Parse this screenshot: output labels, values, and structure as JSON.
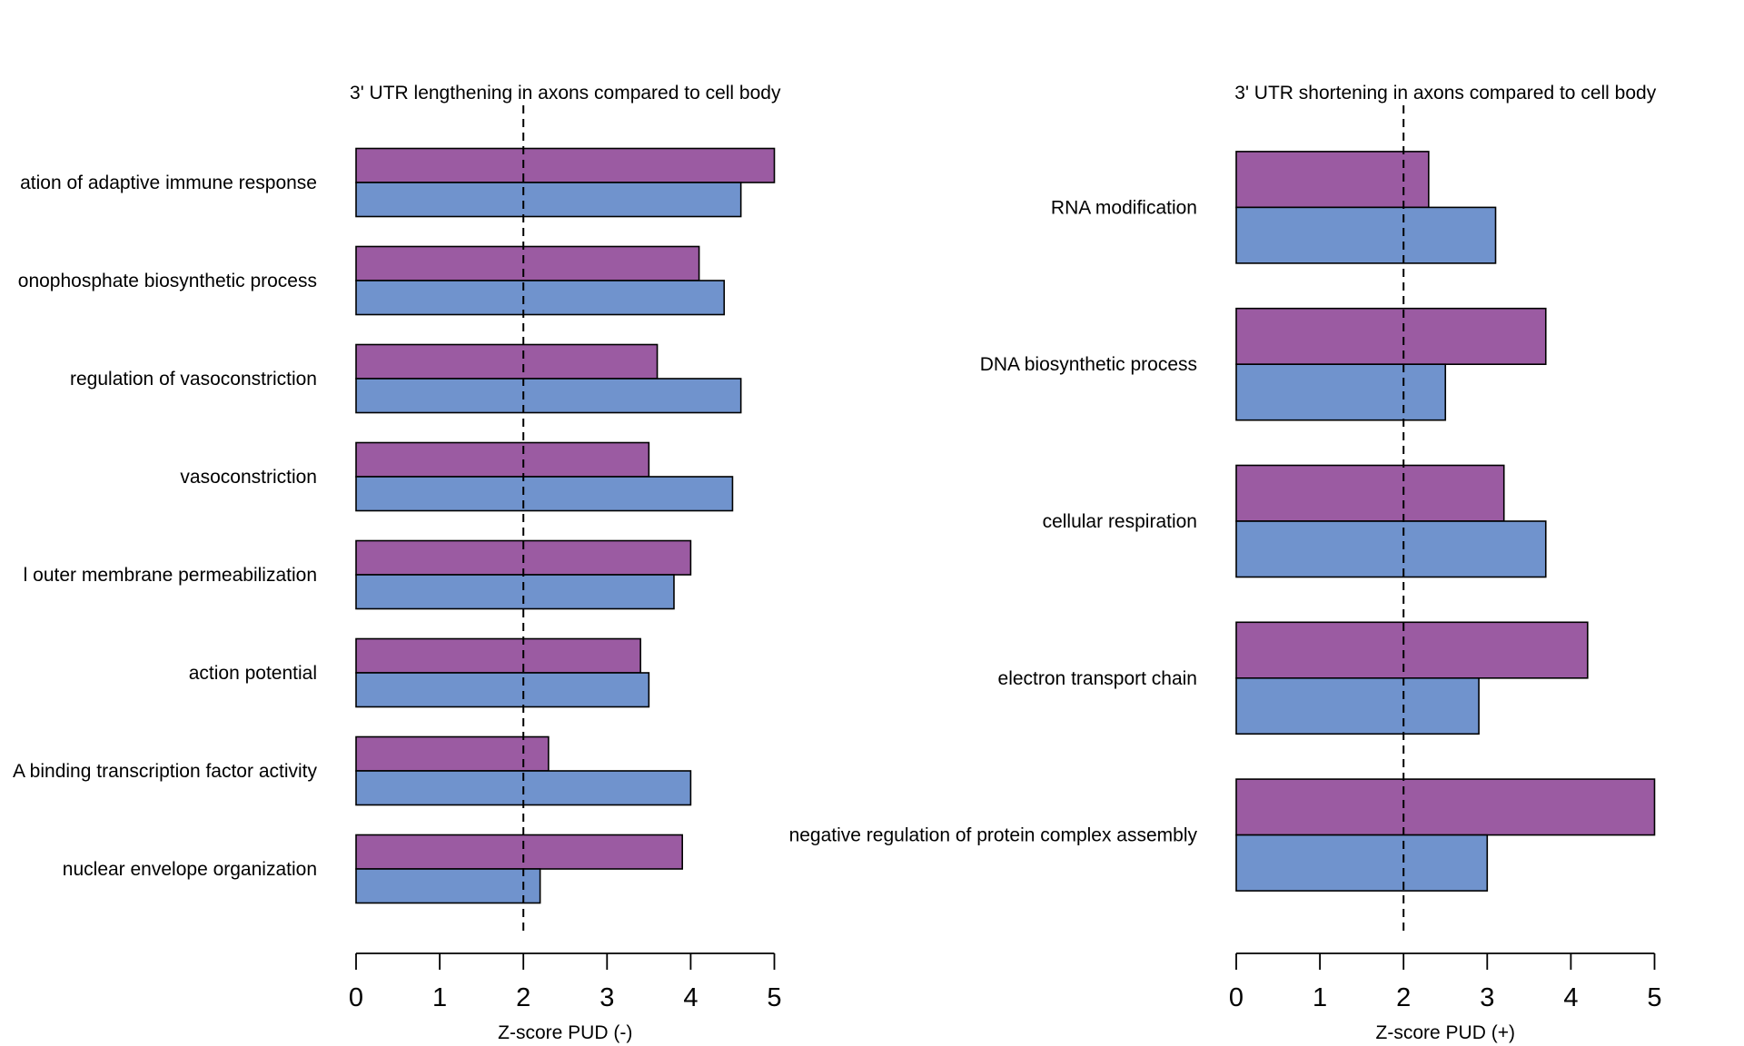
{
  "chart_data": [
    {
      "type": "bar",
      "orientation": "horizontal",
      "title": "3' UTR lengthening in axons compared to cell body",
      "xlabel": "Z-score PUD (-)",
      "categories": [
        "ation of adaptive immune response",
        "onophosphate biosynthetic process",
        "regulation of vasoconstriction",
        "vasoconstriction",
        "l outer membrane permeabilization",
        "action potential",
        "A binding transcription factor activity",
        "nuclear envelope organization"
      ],
      "series": [
        {
          "color": "#9B5BA2",
          "values": [
            5.0,
            4.1,
            3.6,
            3.5,
            4.0,
            3.4,
            2.3,
            3.9
          ]
        },
        {
          "color": "#7093CD",
          "values": [
            4.6,
            4.4,
            4.6,
            4.5,
            3.8,
            3.5,
            4.0,
            2.2
          ]
        }
      ],
      "xlim": [
        0,
        5
      ],
      "xticks": [
        "0",
        "1",
        "2",
        "3",
        "4",
        "5"
      ],
      "reference_line": 2,
      "grid": false
    },
    {
      "type": "bar",
      "orientation": "horizontal",
      "title": "3' UTR shortening in axons compared to cell body",
      "xlabel": "Z-score PUD (+)",
      "categories": [
        "RNA modification",
        "DNA biosynthetic process",
        "cellular respiration",
        "electron transport chain",
        "negative regulation of protein complex assembly"
      ],
      "series": [
        {
          "color": "#9B5BA2",
          "values": [
            2.3,
            3.7,
            3.2,
            4.2,
            5.0
          ]
        },
        {
          "color": "#7093CD",
          "values": [
            3.1,
            2.5,
            3.7,
            2.9,
            3.0
          ]
        }
      ],
      "xlim": [
        0,
        5
      ],
      "xticks": [
        "0",
        "1",
        "2",
        "3",
        "4",
        "5"
      ],
      "reference_line": 2,
      "grid": false
    }
  ]
}
